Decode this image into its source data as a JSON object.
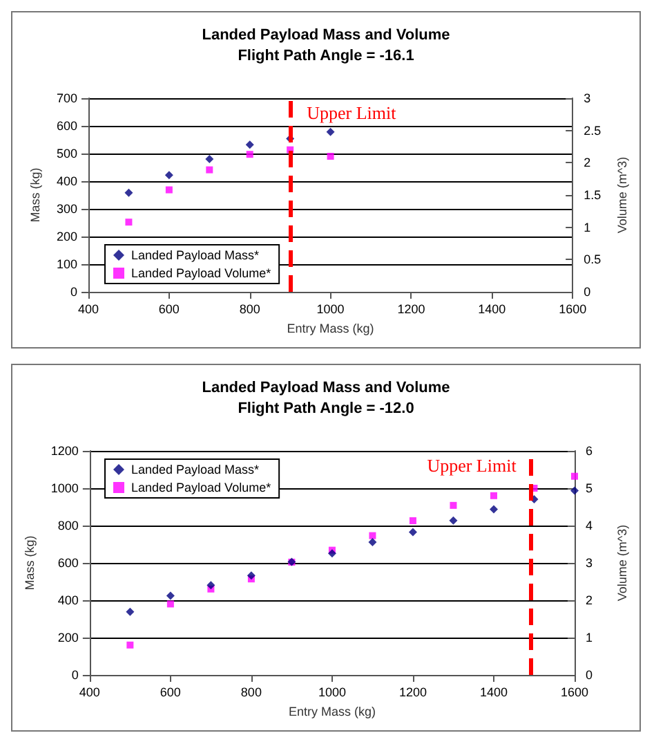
{
  "chart_data": [
    {
      "type": "scatter",
      "title": "Landed Payload Mass and Volume",
      "subtitle": "Flight Path Angle = -16.1",
      "xlabel": "Entry Mass (kg)",
      "ylabel": "Mass (kg)",
      "y2label": "Volume (m^3)",
      "x": [
        500,
        600,
        700,
        800,
        900,
        1000
      ],
      "series": [
        {
          "name": "Landed Payload Mass*",
          "color": "#000080",
          "marker": "diamond",
          "values": [
            358,
            422,
            480,
            532,
            554,
            578
          ]
        },
        {
          "name": "Landed Payload Volume*",
          "color": "#ff00ff",
          "marker": "square",
          "axis": "y2",
          "values": [
            1.08,
            1.58,
            1.89,
            2.13,
            2.2,
            2.1
          ]
        }
      ],
      "xlim": [
        400,
        1600
      ],
      "xticks": [
        400,
        600,
        800,
        1000,
        1200,
        1400,
        1600
      ],
      "ylim": [
        0,
        700
      ],
      "yticks": [
        0,
        100,
        200,
        300,
        400,
        500,
        600,
        700
      ],
      "y2lim": [
        0,
        3
      ],
      "y2ticks": [
        0,
        0.5,
        1,
        1.5,
        2,
        2.5,
        3
      ],
      "ref_lines": [
        {
          "axis": "x",
          "value": 900,
          "label": "Upper Limit",
          "color": "#ff0000",
          "line_style": "dashed"
        }
      ],
      "grid": "y",
      "legend": "bottom left"
    },
    {
      "type": "scatter",
      "title": "Landed Payload Mass and Volume",
      "subtitle": "Flight Path Angle = -12.0",
      "xlabel": "Entry Mass (kg)",
      "ylabel": "Mass (kg)",
      "y2label": "Volume (m^3)",
      "x": [
        500,
        600,
        700,
        800,
        900,
        1000,
        1100,
        1200,
        1300,
        1400,
        1500,
        1600
      ],
      "series": [
        {
          "name": "Landed Payload Mass*",
          "color": "#000080",
          "marker": "diamond",
          "values": [
            338,
            424,
            481,
            532,
            606,
            651,
            711,
            765,
            827,
            887,
            941,
            987
          ]
        },
        {
          "name": "Landed Payload Volume*",
          "color": "#ff00ff",
          "marker": "square",
          "axis": "y2",
          "values": [
            0.8,
            1.9,
            2.3,
            2.57,
            3.02,
            3.34,
            3.73,
            4.13,
            4.54,
            4.8,
            5.0,
            5.32
          ]
        }
      ],
      "xlim": [
        400,
        1600
      ],
      "xticks": [
        400,
        600,
        800,
        1000,
        1200,
        1400,
        1600
      ],
      "ylim": [
        0,
        1200
      ],
      "yticks": [
        0,
        200,
        400,
        600,
        800,
        1000,
        1200
      ],
      "y2lim": [
        0,
        6
      ],
      "y2ticks": [
        0,
        1,
        2,
        3,
        4,
        5,
        6
      ],
      "ref_lines": [
        {
          "axis": "x",
          "value": 1490,
          "label": "Upper Limit",
          "color": "#ff0000",
          "line_style": "dashed"
        }
      ],
      "grid": "y",
      "legend": "top left"
    }
  ]
}
